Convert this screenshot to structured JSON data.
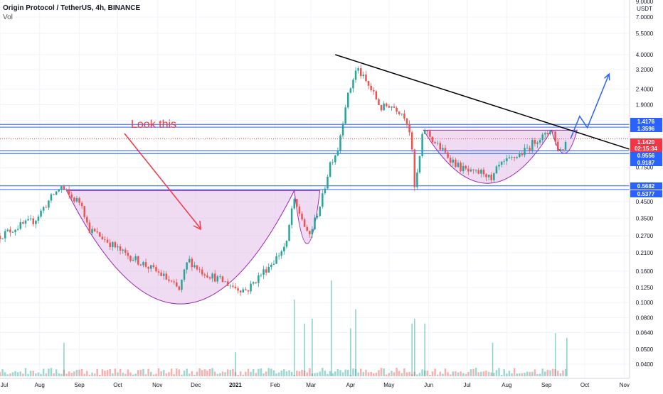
{
  "header": {
    "title": "Origin Protocol / TetherUS, 4h, BINANCE",
    "indicator": "Vol"
  },
  "annotation_text": "Look this",
  "colors": {
    "up": "#26a69a",
    "down": "#ef5350",
    "level_line": "#2962ff",
    "trendline": "#000000",
    "cup_fill": "#e1bee7",
    "cup_stroke": "#9c27b0",
    "arrow_red": "#f23645",
    "current_price": "#f23645"
  },
  "price_axis": {
    "unit": "USDT",
    "ticks": [
      "7.0000",
      "5.5000",
      "4.0000",
      "3.2000",
      "2.4000",
      "1.9000",
      "1.5000",
      "0.7500",
      "0.4500",
      "0.3500",
      "0.2700",
      "0.2100",
      "0.1600",
      "0.1250",
      "0.1000",
      "0.0800",
      "0.0640",
      "0.0500",
      "0.0400"
    ],
    "top_partial": "9.0000"
  },
  "price_labels": [
    {
      "text": "1.4176",
      "kind": "level"
    },
    {
      "text": "1.3596",
      "kind": "level"
    },
    {
      "text": "1.1420",
      "kind": "current"
    },
    {
      "text": "02:15:34",
      "kind": "countdown"
    },
    {
      "text": "0.9556",
      "kind": "level"
    },
    {
      "text": "0.9187",
      "kind": "level"
    },
    {
      "text": "0.5682",
      "kind": "level"
    },
    {
      "text": "0.5377",
      "kind": "level"
    }
  ],
  "time_axis": {
    "labels": [
      "Jul",
      "Aug",
      "Sep",
      "Oct",
      "Nov",
      "Dec",
      "2021",
      "Feb",
      "Mar",
      "Apr",
      "May",
      "Jun",
      "Jul",
      "Aug",
      "Sep",
      "Oct",
      "Nov"
    ]
  },
  "chart_data": {
    "type": "candlestick",
    "title": "Origin Protocol / TetherUS, 4h, BINANCE",
    "y_scale": "log",
    "ylim": [
      0.035,
      9.0
    ],
    "xlim": [
      "2020-07-01",
      "2021-11-05"
    ],
    "current_price": 1.142,
    "horizontal_levels": [
      1.4176,
      1.3596,
      0.9556,
      0.9187,
      0.5682,
      0.5377
    ],
    "price_path": [
      [
        "2020-07-01",
        0.27
      ],
      [
        "2020-07-15",
        0.31
      ],
      [
        "2020-07-28",
        0.34
      ],
      [
        "2020-08-05",
        0.42
      ],
      [
        "2020-08-12",
        0.5
      ],
      [
        "2020-08-18",
        0.56
      ],
      [
        "2020-08-25",
        0.48
      ],
      [
        "2020-09-03",
        0.44
      ],
      [
        "2020-09-08",
        0.3
      ],
      [
        "2020-09-20",
        0.26
      ],
      [
        "2020-10-05",
        0.21
      ],
      [
        "2020-10-20",
        0.18
      ],
      [
        "2020-11-05",
        0.15
      ],
      [
        "2020-11-18",
        0.12
      ],
      [
        "2020-11-25",
        0.19
      ],
      [
        "2020-12-05",
        0.16
      ],
      [
        "2020-12-20",
        0.14
      ],
      [
        "2021-01-01",
        0.125
      ],
      [
        "2021-01-10",
        0.12
      ],
      [
        "2021-01-20",
        0.15
      ],
      [
        "2021-02-01",
        0.19
      ],
      [
        "2021-02-10",
        0.24
      ],
      [
        "2021-02-15",
        0.46
      ],
      [
        "2021-02-22",
        0.35
      ],
      [
        "2021-02-27",
        0.26
      ],
      [
        "2021-03-03",
        0.32
      ],
      [
        "2021-03-10",
        0.48
      ],
      [
        "2021-03-16",
        0.8
      ],
      [
        "2021-03-22",
        0.98
      ],
      [
        "2021-03-28",
        1.9
      ],
      [
        "2021-04-03",
        2.8
      ],
      [
        "2021-04-06",
        3.3
      ],
      [
        "2021-04-10",
        2.9
      ],
      [
        "2021-04-18",
        2.3
      ],
      [
        "2021-04-25",
        1.8
      ],
      [
        "2021-05-01",
        1.9
      ],
      [
        "2021-05-07",
        1.8
      ],
      [
        "2021-05-14",
        1.6
      ],
      [
        "2021-05-18",
        1.2
      ],
      [
        "2021-05-21",
        0.55
      ],
      [
        "2021-05-24",
        0.75
      ],
      [
        "2021-05-28",
        1.35
      ],
      [
        "2021-06-05",
        1.1
      ],
      [
        "2021-06-15",
        0.9
      ],
      [
        "2021-06-25",
        0.75
      ],
      [
        "2021-07-05",
        0.68
      ],
      [
        "2021-07-15",
        0.7
      ],
      [
        "2021-07-20",
        0.6
      ],
      [
        "2021-07-25",
        0.75
      ],
      [
        "2021-08-05",
        0.85
      ],
      [
        "2021-08-15",
        0.95
      ],
      [
        "2021-08-25",
        1.15
      ],
      [
        "2021-09-01",
        1.2
      ],
      [
        "2021-09-05",
        1.38
      ],
      [
        "2021-09-09",
        1.0
      ],
      [
        "2021-09-13",
        0.96
      ],
      [
        "2021-09-17",
        1.14
      ]
    ],
    "trendline": [
      [
        "2021-03-20",
        4.0
      ],
      [
        "2021-11-05",
        0.98
      ]
    ],
    "cup_patterns": [
      {
        "start": [
          "2020-08-22",
          0.53
        ],
        "end": [
          "2021-02-16",
          0.53
        ],
        "bottom": 0.098
      },
      {
        "start": [
          "2021-02-16",
          0.53
        ],
        "end": [
          "2021-03-08",
          0.53
        ],
        "bottom": 0.24
      },
      {
        "start": [
          "2021-05-28",
          1.3
        ],
        "end": [
          "2021-09-05",
          1.3
        ],
        "bottom": 0.59
      },
      {
        "start": [
          "2021-09-05",
          1.3
        ],
        "end": [
          "2021-09-25",
          1.3
        ],
        "bottom": 0.92
      }
    ],
    "projection": [
      [
        "2021-09-20",
        1.15
      ],
      [
        "2021-09-27",
        1.6
      ],
      [
        "2021-10-03",
        1.35
      ],
      [
        "2021-10-20",
        3.0
      ]
    ],
    "volume_spikes": [
      [
        "2020-08-20",
        0.35
      ],
      [
        "2021-01-01",
        0.25
      ],
      [
        "2021-02-16",
        0.8
      ],
      [
        "2021-02-24",
        0.55
      ],
      [
        "2021-03-02",
        0.6
      ],
      [
        "2021-03-17",
        1.0
      ],
      [
        "2021-04-01",
        0.5
      ],
      [
        "2021-04-05",
        0.7
      ],
      [
        "2021-05-19",
        0.55
      ],
      [
        "2021-05-21",
        0.6
      ],
      [
        "2021-05-29",
        0.55
      ],
      [
        "2021-07-21",
        0.35
      ],
      [
        "2021-09-08",
        0.45
      ],
      [
        "2021-09-17",
        0.4
      ]
    ]
  }
}
